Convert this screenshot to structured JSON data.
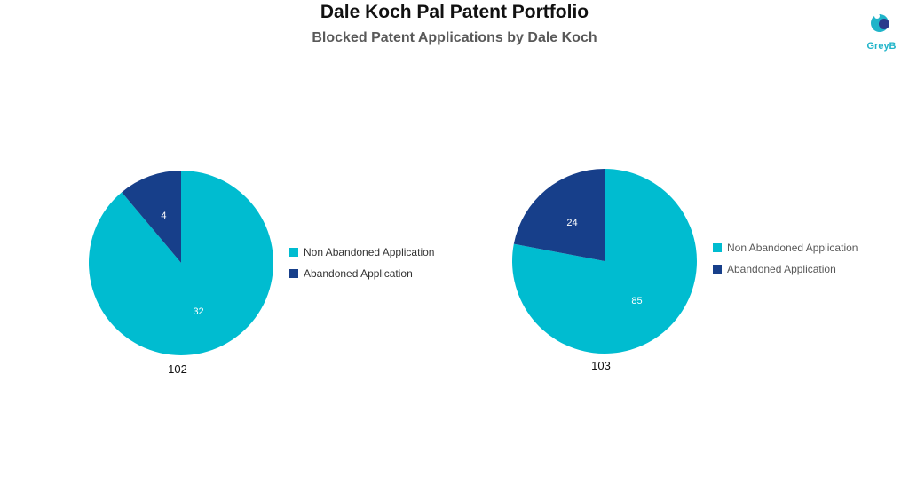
{
  "title": "Dale Koch Pal Patent Portfolio",
  "subtitle": "Blocked Patent Applications by Dale Koch",
  "logo": {
    "text": "GreyB"
  },
  "colors": {
    "non_abandoned": "#00bcd0",
    "abandoned": "#173f8a"
  },
  "legend": [
    "Non Abandoned Application",
    "Abandoned Application"
  ],
  "chart_data": [
    {
      "type": "pie",
      "label": "102",
      "slices": [
        {
          "name": "Non Abandoned Application",
          "value": 32
        },
        {
          "name": "Abandoned Application",
          "value": 4
        }
      ]
    },
    {
      "type": "pie",
      "label": "103",
      "slices": [
        {
          "name": "Non Abandoned Application",
          "value": 85
        },
        {
          "name": "Abandoned Application",
          "value": 24
        }
      ]
    }
  ]
}
